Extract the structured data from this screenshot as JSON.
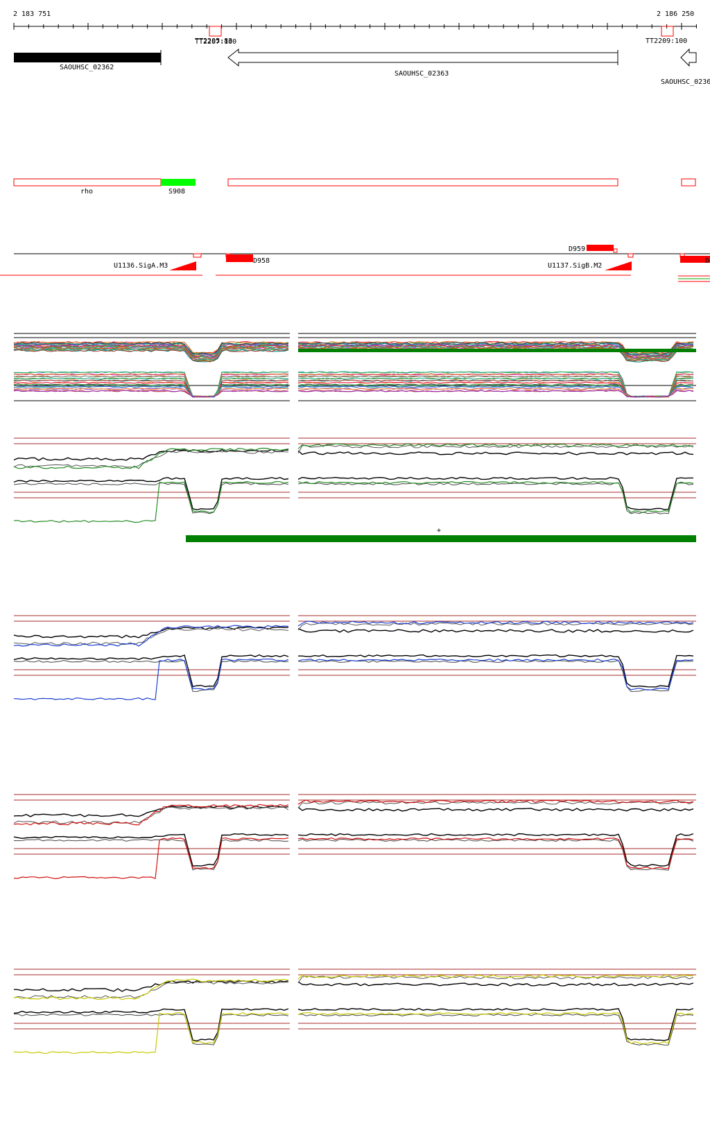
{
  "ruler": {
    "start_label": "2 183 751",
    "end_label": "2 186 250"
  },
  "terminators": {
    "left_label": "TT2205:83",
    "left_label_overlap": "TT2207:100",
    "right_label": "TT2209:100"
  },
  "genes": {
    "left": "SAOUHSC_02362",
    "middle": "SAOUHSC_02363",
    "right": "SAOUHSC_0236"
  },
  "operon": {
    "rho_label": "rho",
    "s_label": "S908"
  },
  "regulatory": {
    "d959": "D959",
    "d958": "D958",
    "u1136": "U1136.SigA.M3",
    "u1137": "U1137.SigB.M2",
    "edge_d": "D"
  },
  "green_bar": {
    "strand_label": "+"
  },
  "colors": {
    "gene_filled": "#000000",
    "outline_red": "#ff0000",
    "segment_green": "#00ff00",
    "strand_bar": "#008000",
    "guide_line": "#a52a2a",
    "green_series": "#228b22",
    "blue_series": "#1a3fd1",
    "red_series": "#d01010",
    "yellow_series": "#c8c800"
  }
}
